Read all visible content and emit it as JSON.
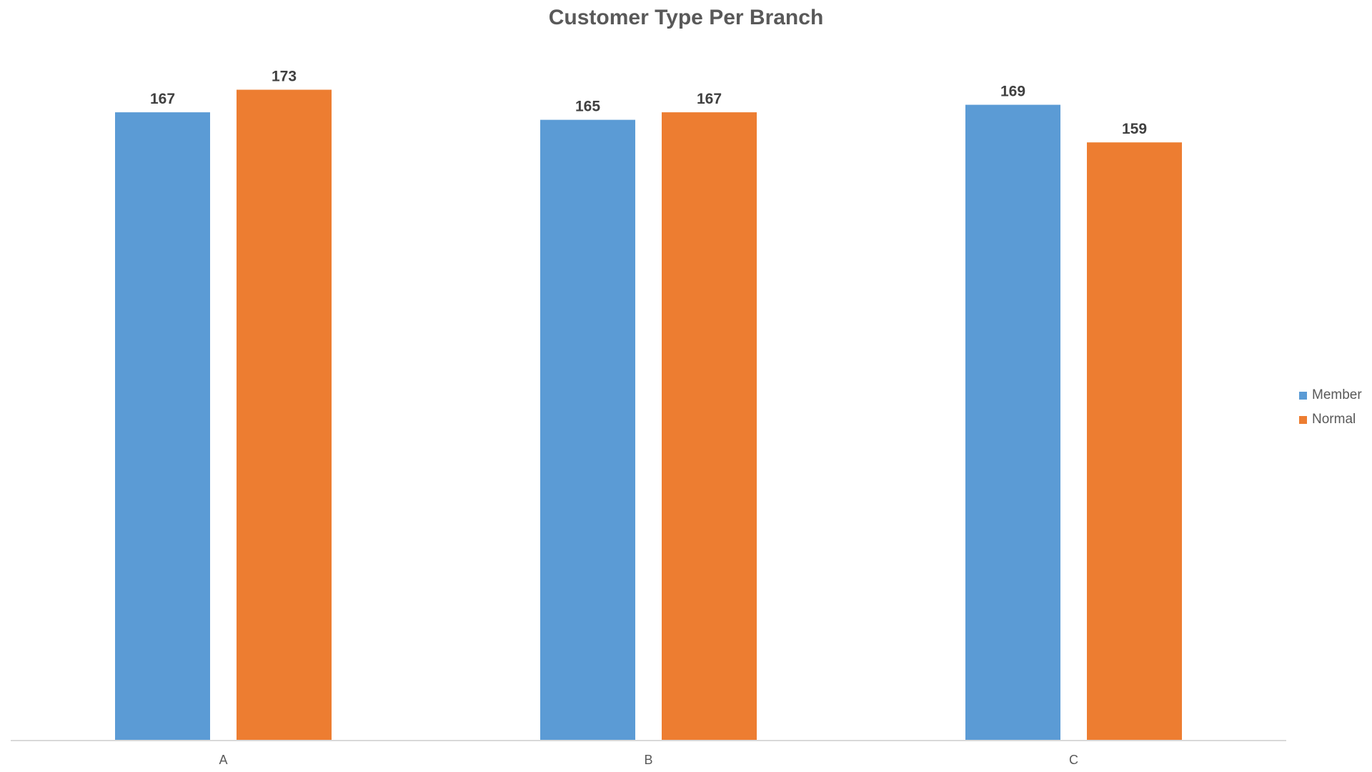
{
  "chart_data": {
    "type": "bar",
    "title": "Customer Type Per Branch",
    "xlabel": "",
    "ylabel": "",
    "categories": [
      "A",
      "B",
      "C"
    ],
    "series": [
      {
        "name": "Member",
        "values": [
          167,
          165,
          169
        ],
        "color": "#5B9BD5"
      },
      {
        "name": "Normal",
        "values": [
          173,
          167,
          159
        ],
        "color": "#ED7D31"
      }
    ],
    "ylim": [
      0,
      175
    ],
    "grid": false,
    "legend_position": "right"
  }
}
